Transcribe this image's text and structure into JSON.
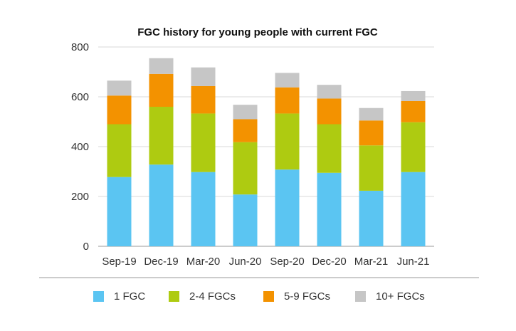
{
  "chart_data": {
    "type": "bar",
    "stacked": true,
    "title": "FGC history for young people with current FGC",
    "xlabel": "",
    "ylabel": "",
    "categories": [
      "Sep-19",
      "Dec-19",
      "Mar-20",
      "Jun-20",
      "Sep-20",
      "Dec-20",
      "Mar-21",
      "Jun-21"
    ],
    "ylim": [
      0,
      800
    ],
    "yticks": [
      "0",
      "200",
      "400",
      "600",
      "800"
    ],
    "grid": true,
    "legend_position": "bottom",
    "series": [
      {
        "name": "1 FGC",
        "color": "#5bc5f2",
        "values": [
          278,
          328,
          298,
          208,
          308,
          295,
          223,
          298
        ]
      },
      {
        "name": "2-4 FGCs",
        "color": "#aecb11",
        "values": [
          212,
          232,
          235,
          210,
          225,
          195,
          182,
          200
        ]
      },
      {
        "name": "5-9 FGCs",
        "color": "#f39200",
        "values": [
          115,
          132,
          110,
          92,
          105,
          103,
          100,
          85
        ]
      },
      {
        "name": "10+ FGCs",
        "color": "#c6c6c6",
        "values": [
          60,
          63,
          75,
          58,
          58,
          55,
          50,
          40
        ]
      }
    ]
  }
}
